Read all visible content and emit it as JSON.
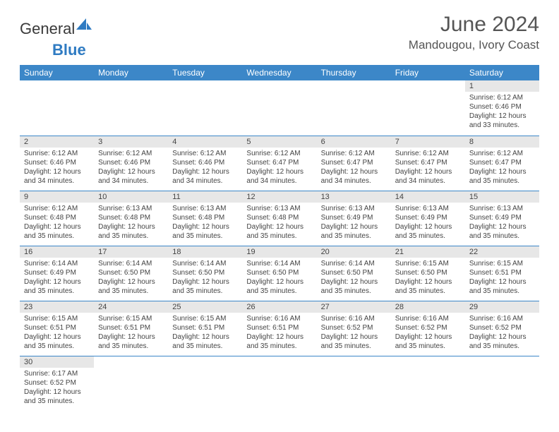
{
  "brand": {
    "part1": "General",
    "part2": "Blue"
  },
  "title": "June 2024",
  "location": "Mandougou, Ivory Coast",
  "colors": {
    "header_bg": "#3c87c8",
    "header_text": "#ffffff",
    "daynum_bg": "#e7e7e7",
    "text": "#444444",
    "brand_blue": "#2f7bc2"
  },
  "weekdays": [
    "Sunday",
    "Monday",
    "Tuesday",
    "Wednesday",
    "Thursday",
    "Friday",
    "Saturday"
  ],
  "weeks": [
    [
      null,
      null,
      null,
      null,
      null,
      null,
      {
        "n": "1",
        "sr": "Sunrise: 6:12 AM",
        "ss": "Sunset: 6:46 PM",
        "dl": "Daylight: 12 hours and 33 minutes."
      }
    ],
    [
      {
        "n": "2",
        "sr": "Sunrise: 6:12 AM",
        "ss": "Sunset: 6:46 PM",
        "dl": "Daylight: 12 hours and 34 minutes."
      },
      {
        "n": "3",
        "sr": "Sunrise: 6:12 AM",
        "ss": "Sunset: 6:46 PM",
        "dl": "Daylight: 12 hours and 34 minutes."
      },
      {
        "n": "4",
        "sr": "Sunrise: 6:12 AM",
        "ss": "Sunset: 6:46 PM",
        "dl": "Daylight: 12 hours and 34 minutes."
      },
      {
        "n": "5",
        "sr": "Sunrise: 6:12 AM",
        "ss": "Sunset: 6:47 PM",
        "dl": "Daylight: 12 hours and 34 minutes."
      },
      {
        "n": "6",
        "sr": "Sunrise: 6:12 AM",
        "ss": "Sunset: 6:47 PM",
        "dl": "Daylight: 12 hours and 34 minutes."
      },
      {
        "n": "7",
        "sr": "Sunrise: 6:12 AM",
        "ss": "Sunset: 6:47 PM",
        "dl": "Daylight: 12 hours and 34 minutes."
      },
      {
        "n": "8",
        "sr": "Sunrise: 6:12 AM",
        "ss": "Sunset: 6:47 PM",
        "dl": "Daylight: 12 hours and 35 minutes."
      }
    ],
    [
      {
        "n": "9",
        "sr": "Sunrise: 6:12 AM",
        "ss": "Sunset: 6:48 PM",
        "dl": "Daylight: 12 hours and 35 minutes."
      },
      {
        "n": "10",
        "sr": "Sunrise: 6:13 AM",
        "ss": "Sunset: 6:48 PM",
        "dl": "Daylight: 12 hours and 35 minutes."
      },
      {
        "n": "11",
        "sr": "Sunrise: 6:13 AM",
        "ss": "Sunset: 6:48 PM",
        "dl": "Daylight: 12 hours and 35 minutes."
      },
      {
        "n": "12",
        "sr": "Sunrise: 6:13 AM",
        "ss": "Sunset: 6:48 PM",
        "dl": "Daylight: 12 hours and 35 minutes."
      },
      {
        "n": "13",
        "sr": "Sunrise: 6:13 AM",
        "ss": "Sunset: 6:49 PM",
        "dl": "Daylight: 12 hours and 35 minutes."
      },
      {
        "n": "14",
        "sr": "Sunrise: 6:13 AM",
        "ss": "Sunset: 6:49 PM",
        "dl": "Daylight: 12 hours and 35 minutes."
      },
      {
        "n": "15",
        "sr": "Sunrise: 6:13 AM",
        "ss": "Sunset: 6:49 PM",
        "dl": "Daylight: 12 hours and 35 minutes."
      }
    ],
    [
      {
        "n": "16",
        "sr": "Sunrise: 6:14 AM",
        "ss": "Sunset: 6:49 PM",
        "dl": "Daylight: 12 hours and 35 minutes."
      },
      {
        "n": "17",
        "sr": "Sunrise: 6:14 AM",
        "ss": "Sunset: 6:50 PM",
        "dl": "Daylight: 12 hours and 35 minutes."
      },
      {
        "n": "18",
        "sr": "Sunrise: 6:14 AM",
        "ss": "Sunset: 6:50 PM",
        "dl": "Daylight: 12 hours and 35 minutes."
      },
      {
        "n": "19",
        "sr": "Sunrise: 6:14 AM",
        "ss": "Sunset: 6:50 PM",
        "dl": "Daylight: 12 hours and 35 minutes."
      },
      {
        "n": "20",
        "sr": "Sunrise: 6:14 AM",
        "ss": "Sunset: 6:50 PM",
        "dl": "Daylight: 12 hours and 35 minutes."
      },
      {
        "n": "21",
        "sr": "Sunrise: 6:15 AM",
        "ss": "Sunset: 6:50 PM",
        "dl": "Daylight: 12 hours and 35 minutes."
      },
      {
        "n": "22",
        "sr": "Sunrise: 6:15 AM",
        "ss": "Sunset: 6:51 PM",
        "dl": "Daylight: 12 hours and 35 minutes."
      }
    ],
    [
      {
        "n": "23",
        "sr": "Sunrise: 6:15 AM",
        "ss": "Sunset: 6:51 PM",
        "dl": "Daylight: 12 hours and 35 minutes."
      },
      {
        "n": "24",
        "sr": "Sunrise: 6:15 AM",
        "ss": "Sunset: 6:51 PM",
        "dl": "Daylight: 12 hours and 35 minutes."
      },
      {
        "n": "25",
        "sr": "Sunrise: 6:15 AM",
        "ss": "Sunset: 6:51 PM",
        "dl": "Daylight: 12 hours and 35 minutes."
      },
      {
        "n": "26",
        "sr": "Sunrise: 6:16 AM",
        "ss": "Sunset: 6:51 PM",
        "dl": "Daylight: 12 hours and 35 minutes."
      },
      {
        "n": "27",
        "sr": "Sunrise: 6:16 AM",
        "ss": "Sunset: 6:52 PM",
        "dl": "Daylight: 12 hours and 35 minutes."
      },
      {
        "n": "28",
        "sr": "Sunrise: 6:16 AM",
        "ss": "Sunset: 6:52 PM",
        "dl": "Daylight: 12 hours and 35 minutes."
      },
      {
        "n": "29",
        "sr": "Sunrise: 6:16 AM",
        "ss": "Sunset: 6:52 PM",
        "dl": "Daylight: 12 hours and 35 minutes."
      }
    ],
    [
      {
        "n": "30",
        "sr": "Sunrise: 6:17 AM",
        "ss": "Sunset: 6:52 PM",
        "dl": "Daylight: 12 hours and 35 minutes."
      },
      null,
      null,
      null,
      null,
      null,
      null
    ]
  ]
}
